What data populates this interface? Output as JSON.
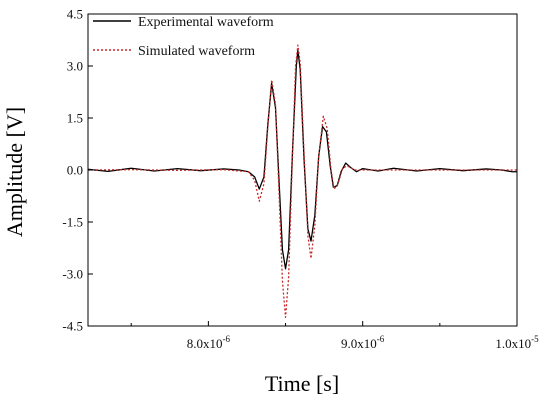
{
  "chart_data": {
    "type": "line",
    "title": "",
    "xlabel": "Time [s]",
    "ylabel": "Amplitude [V]",
    "xlim": [
      7.22e-06,
      1e-05
    ],
    "ylim": [
      -4.5,
      4.5
    ],
    "grid": false,
    "legend_position": "top-left",
    "yticks": [
      {
        "value": 4.5,
        "label": "4.5"
      },
      {
        "value": 3.0,
        "label": "3.0"
      },
      {
        "value": 1.5,
        "label": "1.5"
      },
      {
        "value": 0.0,
        "label": "0.0"
      },
      {
        "value": -1.5,
        "label": "-1.5"
      },
      {
        "value": -3.0,
        "label": "-3.0"
      },
      {
        "value": -4.5,
        "label": "-4.5"
      }
    ],
    "xticks": [
      {
        "value": 8e-06,
        "mantissa": "8.0x10",
        "exponent": "-6"
      },
      {
        "value": 9e-06,
        "mantissa": "9.0x10",
        "exponent": "-6"
      },
      {
        "value": 1e-05,
        "mantissa": "1.0x10",
        "exponent": "-5"
      }
    ],
    "series": [
      {
        "name": "Experimental waveform",
        "color": "#000000",
        "dash": "solid",
        "points": [
          [
            7.22e-06,
            0.02
          ],
          [
            7.35e-06,
            -0.04
          ],
          [
            7.5e-06,
            0.05
          ],
          [
            7.65e-06,
            -0.03
          ],
          [
            7.8e-06,
            0.04
          ],
          [
            7.95e-06,
            -0.02
          ],
          [
            8.1e-06,
            0.03
          ],
          [
            8.2e-06,
            0.0
          ],
          [
            8.26e-06,
            -0.05
          ],
          [
            8.3e-06,
            -0.2
          ],
          [
            8.33e-06,
            -0.55
          ],
          [
            8.36e-06,
            -0.2
          ],
          [
            8.385e-06,
            1.3
          ],
          [
            8.41e-06,
            2.5
          ],
          [
            8.435e-06,
            1.8
          ],
          [
            8.46e-06,
            -0.5
          ],
          [
            8.48e-06,
            -2.3
          ],
          [
            8.5e-06,
            -2.85
          ],
          [
            8.52e-06,
            -2.3
          ],
          [
            8.545e-06,
            0.5
          ],
          [
            8.57e-06,
            3.0
          ],
          [
            8.58e-06,
            3.45
          ],
          [
            8.595e-06,
            2.9
          ],
          [
            8.62e-06,
            0.3
          ],
          [
            8.645e-06,
            -1.7
          ],
          [
            8.665e-06,
            -2.05
          ],
          [
            8.69e-06,
            -1.3
          ],
          [
            8.715e-06,
            0.4
          ],
          [
            8.74e-06,
            1.25
          ],
          [
            8.765e-06,
            1.1
          ],
          [
            8.79e-06,
            0.1
          ],
          [
            8.81e-06,
            -0.5
          ],
          [
            8.835e-06,
            -0.45
          ],
          [
            8.86e-06,
            -0.05
          ],
          [
            8.89e-06,
            0.2
          ],
          [
            8.92e-06,
            0.08
          ],
          [
            8.96e-06,
            -0.05
          ],
          [
            9e-06,
            0.04
          ],
          [
            9.1e-06,
            -0.03
          ],
          [
            9.2e-06,
            0.05
          ],
          [
            9.35e-06,
            -0.03
          ],
          [
            9.5e-06,
            0.04
          ],
          [
            9.65e-06,
            -0.02
          ],
          [
            9.8e-06,
            0.03
          ],
          [
            9.9e-06,
            0.0
          ],
          [
            9.97e-06,
            -0.05
          ],
          [
            1e-05,
            -0.05
          ]
        ]
      },
      {
        "name": "Simulated waveform",
        "color": "#c62828",
        "dash": "dotted",
        "points": [
          [
            7.22e-06,
            0.0
          ],
          [
            7.5e-06,
            0.01
          ],
          [
            7.8e-06,
            -0.01
          ],
          [
            8.1e-06,
            0.01
          ],
          [
            8.26e-06,
            -0.05
          ],
          [
            8.3e-06,
            -0.3
          ],
          [
            8.33e-06,
            -0.9
          ],
          [
            8.36e-06,
            -0.4
          ],
          [
            8.385e-06,
            1.2
          ],
          [
            8.41e-06,
            2.6
          ],
          [
            8.435e-06,
            1.9
          ],
          [
            8.46e-06,
            -0.9
          ],
          [
            8.48e-06,
            -3.2
          ],
          [
            8.5e-06,
            -4.25
          ],
          [
            8.52e-06,
            -3.1
          ],
          [
            8.545e-06,
            0.4
          ],
          [
            8.565e-06,
            3.0
          ],
          [
            8.58e-06,
            3.6
          ],
          [
            8.595e-06,
            3.1
          ],
          [
            8.62e-06,
            0.5
          ],
          [
            8.645e-06,
            -1.9
          ],
          [
            8.665e-06,
            -2.55
          ],
          [
            8.69e-06,
            -1.6
          ],
          [
            8.715e-06,
            0.4
          ],
          [
            8.745e-06,
            1.55
          ],
          [
            8.77e-06,
            1.2
          ],
          [
            8.795e-06,
            0.0
          ],
          [
            8.815e-06,
            -0.55
          ],
          [
            8.84e-06,
            -0.4
          ],
          [
            8.87e-06,
            0.05
          ],
          [
            8.9e-06,
            0.12
          ],
          [
            8.95e-06,
            0.0
          ],
          [
            9e-06,
            0.0
          ],
          [
            9.5e-06,
            0.0
          ],
          [
            1e-05,
            0.0
          ]
        ]
      }
    ]
  }
}
